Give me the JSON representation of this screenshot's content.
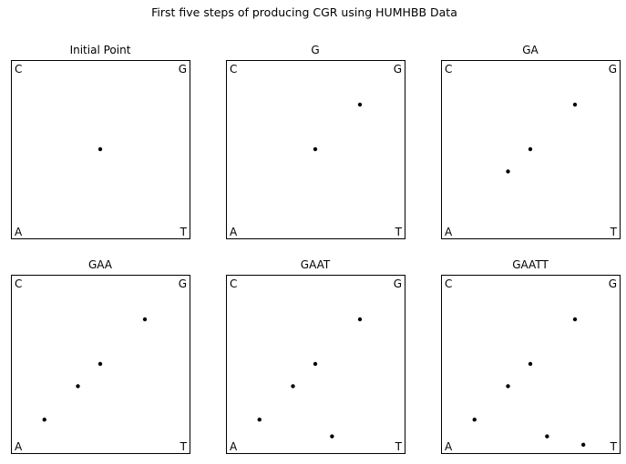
{
  "figure": {
    "suptitle": "First five steps of producing CGR using HUMHBB Data"
  },
  "corner_labels": {
    "top_left": "C",
    "top_right": "G",
    "bottom_left": "A",
    "bottom_right": "T"
  },
  "chart_data": [
    {
      "type": "scatter",
      "title": "Initial Point",
      "xlim": [
        0,
        1
      ],
      "ylim": [
        0,
        1
      ],
      "grid": false,
      "points": [
        [
          0.5,
          0.5
        ]
      ]
    },
    {
      "type": "scatter",
      "title": "G",
      "xlim": [
        0,
        1
      ],
      "ylim": [
        0,
        1
      ],
      "grid": false,
      "points": [
        [
          0.5,
          0.5
        ],
        [
          0.75,
          0.75
        ]
      ]
    },
    {
      "type": "scatter",
      "title": "GA",
      "xlim": [
        0,
        1
      ],
      "ylim": [
        0,
        1
      ],
      "grid": false,
      "points": [
        [
          0.5,
          0.5
        ],
        [
          0.75,
          0.75
        ],
        [
          0.375,
          0.375
        ]
      ]
    },
    {
      "type": "scatter",
      "title": "GAA",
      "xlim": [
        0,
        1
      ],
      "ylim": [
        0,
        1
      ],
      "grid": false,
      "points": [
        [
          0.5,
          0.5
        ],
        [
          0.75,
          0.75
        ],
        [
          0.375,
          0.375
        ],
        [
          0.1875,
          0.1875
        ]
      ]
    },
    {
      "type": "scatter",
      "title": "GAAT",
      "xlim": [
        0,
        1
      ],
      "ylim": [
        0,
        1
      ],
      "grid": false,
      "points": [
        [
          0.5,
          0.5
        ],
        [
          0.75,
          0.75
        ],
        [
          0.375,
          0.375
        ],
        [
          0.1875,
          0.1875
        ],
        [
          0.59375,
          0.09375
        ]
      ]
    },
    {
      "type": "scatter",
      "title": "GAATT",
      "xlim": [
        0,
        1
      ],
      "ylim": [
        0,
        1
      ],
      "grid": false,
      "points": [
        [
          0.5,
          0.5
        ],
        [
          0.75,
          0.75
        ],
        [
          0.375,
          0.375
        ],
        [
          0.1875,
          0.1875
        ],
        [
          0.59375,
          0.09375
        ],
        [
          0.796875,
          0.046875
        ]
      ]
    }
  ]
}
